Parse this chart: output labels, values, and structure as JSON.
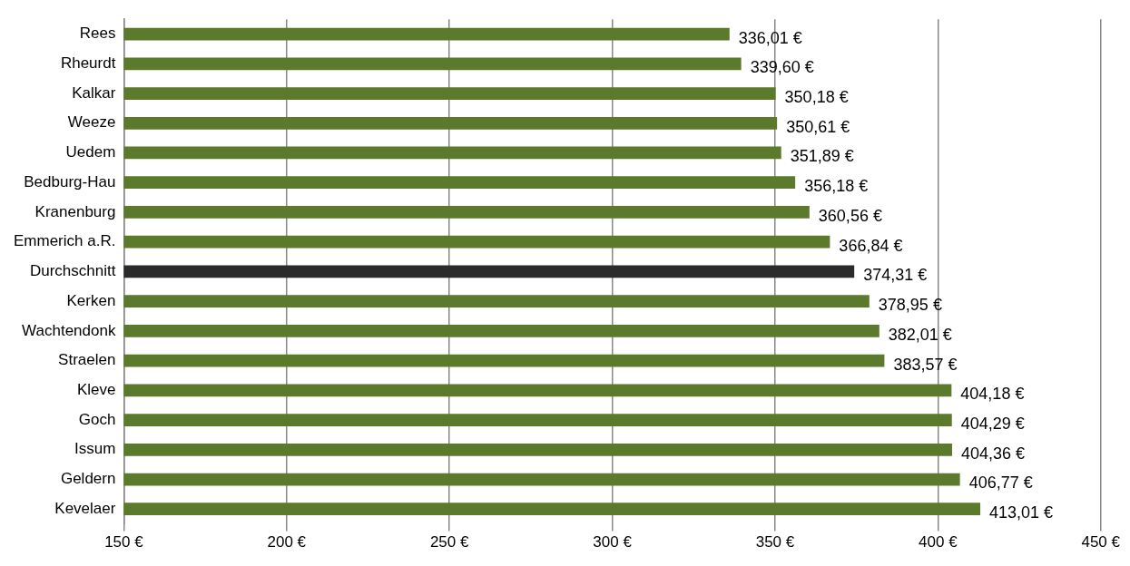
{
  "chart_data": {
    "type": "bar",
    "orientation": "horizontal",
    "categories": [
      "Rees",
      "Rheurdt",
      "Kalkar",
      "Weeze",
      "Uedem",
      "Bedburg-Hau",
      "Kranenburg",
      "Emmerich a.R.",
      "Durchschnitt",
      "Kerken",
      "Wachtendonk",
      "Straelen",
      "Kleve",
      "Goch",
      "Issum",
      "Geldern",
      "Kevelaer"
    ],
    "values": [
      336.01,
      339.6,
      350.18,
      350.61,
      351.89,
      356.18,
      360.56,
      366.84,
      374.31,
      378.95,
      382.01,
      383.57,
      404.18,
      404.29,
      404.36,
      406.77,
      413.01
    ],
    "colors": [
      "#5b7a2b",
      "#5b7a2b",
      "#5b7a2b",
      "#5b7a2b",
      "#5b7a2b",
      "#5b7a2b",
      "#5b7a2b",
      "#5b7a2b",
      "#2b2b2b",
      "#5b7a2b",
      "#5b7a2b",
      "#5b7a2b",
      "#5b7a2b",
      "#5b7a2b",
      "#5b7a2b",
      "#5b7a2b",
      "#5b7a2b"
    ],
    "value_labels": [
      "336,01 €",
      "339,60 €",
      "350,18 €",
      "350,61 €",
      "351,89 €",
      "356,18 €",
      "360,56 €",
      "366,84 €",
      "374,31 €",
      "378,95 €",
      "382,01 €",
      "383,57 €",
      "404,18 €",
      "404,29 €",
      "404,36 €",
      "406,77 €",
      "413,01 €"
    ],
    "xlim": [
      150,
      450
    ],
    "xticks": [
      {
        "value": 150,
        "label": "150 €"
      },
      {
        "value": 200,
        "label": "200 €"
      },
      {
        "value": 250,
        "label": "250 €"
      },
      {
        "value": 300,
        "label": "300 €"
      },
      {
        "value": 350,
        "label": "350 €"
      },
      {
        "value": 400,
        "label": "400 €"
      },
      {
        "value": 450,
        "label": "450 €"
      }
    ],
    "grid": "x",
    "legend": false
  }
}
